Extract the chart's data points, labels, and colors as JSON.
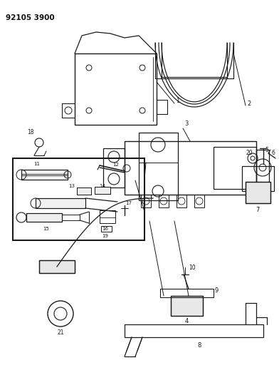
{
  "title_code": "92105 3900",
  "bg_color": "#ffffff",
  "line_color": "#1a1a1a",
  "fig_width": 3.92,
  "fig_height": 5.33,
  "dpi": 100
}
